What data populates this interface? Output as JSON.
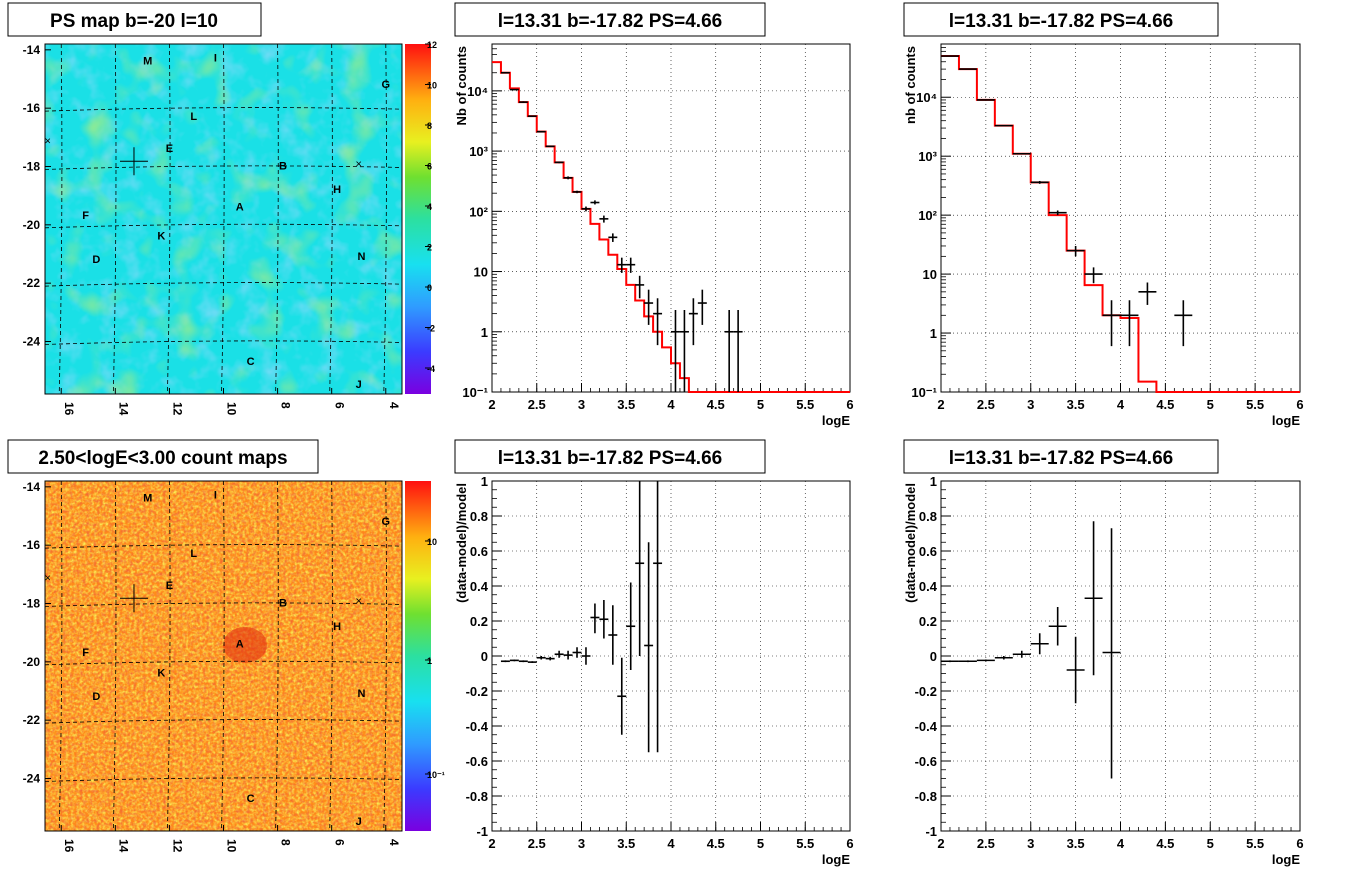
{
  "colors": {
    "model": "#ff0000",
    "data": "#000000",
    "grid": "#000000"
  },
  "map_common": {
    "ylabels": [
      "-14",
      "-16",
      "-18",
      "-20",
      "-22",
      "-24"
    ],
    "xlabels": [
      "16",
      "14",
      "12",
      "10",
      "8",
      "6",
      "4"
    ],
    "sources": [
      {
        "label": "M",
        "l": 12.8,
        "b": -14.5
      },
      {
        "label": "I",
        "l": 10.3,
        "b": -14.4
      },
      {
        "label": "G",
        "l": 4.0,
        "b": -15.3
      },
      {
        "label": "L",
        "l": 11.1,
        "b": -16.4
      },
      {
        "label": "E",
        "l": 12.0,
        "b": -17.5
      },
      {
        "label": "B",
        "l": 7.8,
        "b": -18.1
      },
      {
        "label": "H",
        "l": 5.8,
        "b": -18.9
      },
      {
        "label": "A",
        "l": 9.4,
        "b": -19.5
      },
      {
        "label": "F",
        "l": 15.1,
        "b": -19.8
      },
      {
        "label": "K",
        "l": 12.3,
        "b": -20.5
      },
      {
        "label": "D",
        "l": 14.7,
        "b": -21.3
      },
      {
        "label": "N",
        "l": 4.9,
        "b": -21.2
      },
      {
        "label": "C",
        "l": 9.0,
        "b": -24.8
      },
      {
        "label": "J",
        "l": 5.0,
        "b": -25.6
      }
    ],
    "cross": {
      "l": 13.31,
      "b": -17.82
    }
  },
  "panels": {
    "ps_map": {
      "title": "PS map b=-20 l=10",
      "colorbar_labels": [
        "12",
        "10",
        "8",
        "6",
        "4",
        "2",
        "0",
        "-2",
        "-4"
      ]
    },
    "count_map": {
      "title": "2.50<logE<3.00 count maps",
      "colorbar_labels": [
        "10",
        "1",
        "10⁻¹"
      ]
    },
    "spec1": {
      "title": "l=13.31 b=-17.82 PS=4.66"
    },
    "spec2": {
      "title": "l=13.31 b=-17.82 PS=4.66"
    },
    "res1": {
      "title": "l=13.31 b=-17.82 PS=4.66"
    },
    "res2": {
      "title": "l=13.31 b=-17.82 PS=4.66"
    }
  },
  "chart_data": [
    {
      "id": "spec1",
      "type": "line",
      "title": "l=13.31 b=-17.82 PS=4.66",
      "xlabel": "logE",
      "ylabel": "Nb of counts",
      "xlim": [
        2,
        6
      ],
      "ylim": [
        0.1,
        60000
      ],
      "yscale": "log",
      "grid": true,
      "xticks": [
        "2",
        "2.5",
        "3",
        "3.5",
        "4",
        "4.5",
        "5",
        "5.5",
        "6"
      ],
      "yticks": [
        "10⁻¹",
        "1",
        "10",
        "10²",
        "10³",
        "10⁴"
      ],
      "series": [
        {
          "kind": "histogram",
          "bin_edges": [
            2.0,
            2.1,
            2.2,
            2.3,
            2.4,
            2.5,
            2.6,
            2.7,
            2.8,
            2.9,
            3.0,
            3.1,
            3.2,
            3.3,
            3.4,
            3.5,
            3.6,
            3.7,
            3.8,
            3.9,
            4.0,
            4.1,
            4.2,
            4.3,
            6.0
          ],
          "values": [
            30000,
            20000,
            11000,
            6500,
            3800,
            2100,
            1200,
            650,
            360,
            210,
            110,
            62,
            34,
            19,
            11,
            6.0,
            3.3,
            1.8,
            1.0,
            0.55,
            0.3,
            0.17,
            0.1,
            0.1
          ]
        },
        {
          "kind": "errorbar",
          "x": [
            2.15,
            2.25,
            2.35,
            2.45,
            2.55,
            2.65,
            2.75,
            2.85,
            2.95,
            3.05,
            3.15,
            3.25,
            3.35,
            3.45,
            3.55,
            3.65,
            3.75,
            3.85,
            4.05,
            4.15,
            4.25,
            4.35,
            4.65,
            4.75
          ],
          "y": [
            20000,
            10500,
            6500,
            3800,
            2100,
            1200,
            650,
            360,
            210,
            110,
            140,
            75,
            37,
            13,
            13,
            6,
            3,
            2,
            1,
            1,
            2,
            3,
            1,
            1
          ],
          "ylo": [
            19700,
            10300,
            6300,
            3700,
            2050,
            1170,
            630,
            340,
            200,
            100,
            130,
            65,
            31,
            9.5,
            9.5,
            3.6,
            1.3,
            0.6,
            0.1,
            0.1,
            0.6,
            1.3,
            0.1,
            0.1
          ],
          "yhi": [
            20300,
            10700,
            6700,
            3900,
            2150,
            1230,
            670,
            380,
            220,
            120,
            152,
            85,
            43,
            17,
            17,
            8.5,
            5,
            3.6,
            2.3,
            2.3,
            3.6,
            5,
            2.3,
            2.3
          ]
        }
      ]
    },
    {
      "id": "spec2",
      "type": "line",
      "title": "l=13.31 b=-17.82 PS=4.66",
      "xlabel": "logE",
      "ylabel": "nb of counts",
      "xlim": [
        2,
        6
      ],
      "ylim": [
        0.1,
        80000
      ],
      "yscale": "log",
      "grid": true,
      "xticks": [
        "2",
        "2.5",
        "3",
        "3.5",
        "4",
        "4.5",
        "5",
        "5.5",
        "6"
      ],
      "yticks": [
        "10⁻¹",
        "1",
        "10",
        "10²",
        "10³",
        "10⁴"
      ],
      "series": [
        {
          "kind": "histogram",
          "bin_edges": [
            2.0,
            2.2,
            2.4,
            2.6,
            2.8,
            3.0,
            3.2,
            3.4,
            3.6,
            3.8,
            4.0,
            4.2,
            4.4,
            6.0
          ],
          "values": [
            50000,
            30000,
            9000,
            3300,
            1100,
            360,
            100,
            25,
            6.5,
            2.0,
            1.8,
            0.15,
            0.1
          ]
        },
        {
          "kind": "errorbar",
          "x": [
            2.1,
            2.3,
            2.5,
            2.7,
            2.9,
            3.1,
            3.3,
            3.5,
            3.7,
            3.9,
            4.1,
            4.3,
            4.7
          ],
          "y": [
            50000,
            30000,
            9000,
            3300,
            1100,
            360,
            110,
            25,
            10,
            2,
            2,
            5,
            2
          ],
          "ylo": [
            49700,
            29800,
            8900,
            3250,
            1070,
            340,
            100,
            20,
            7,
            0.6,
            0.6,
            3,
            0.6
          ],
          "yhi": [
            50300,
            30200,
            9100,
            3350,
            1130,
            380,
            120,
            30,
            13,
            3.6,
            3.6,
            7.2,
            3.6
          ]
        }
      ]
    },
    {
      "id": "res1",
      "type": "scatter",
      "title": "l=13.31 b=-17.82 PS=4.66",
      "xlabel": "logE",
      "ylabel": "(data-model)/model",
      "xlim": [
        2,
        6
      ],
      "ylim": [
        -1,
        1
      ],
      "grid": true,
      "xticks": [
        "2",
        "2.5",
        "3",
        "3.5",
        "4",
        "4.5",
        "5",
        "5.5",
        "6"
      ],
      "yticks": [
        "-1",
        "-0.8",
        "-0.6",
        "-0.4",
        "-0.2",
        "0",
        "0.2",
        "0.4",
        "0.6",
        "0.8",
        "1"
      ],
      "series": [
        {
          "kind": "errorbar",
          "x": [
            2.15,
            2.25,
            2.35,
            2.45,
            2.55,
            2.65,
            2.75,
            2.85,
            2.95,
            3.05,
            3.15,
            3.25,
            3.35,
            3.45,
            3.55,
            3.65,
            3.75,
            3.85
          ],
          "y": [
            -0.03,
            -0.025,
            -0.03,
            -0.035,
            -0.01,
            -0.015,
            0.01,
            0.005,
            0.02,
            0.0,
            0.22,
            0.21,
            0.12,
            -0.23,
            0.17,
            0.53,
            0.06,
            0.53
          ],
          "ylo": [
            -0.035,
            -0.03,
            -0.035,
            -0.04,
            -0.02,
            -0.025,
            -0.01,
            -0.02,
            -0.01,
            -0.05,
            0.13,
            0.1,
            -0.05,
            -0.45,
            -0.08,
            0.0,
            -0.55,
            -0.55
          ],
          "yhi": [
            -0.025,
            -0.02,
            -0.025,
            -0.03,
            0.0,
            -0.005,
            0.03,
            0.03,
            0.05,
            0.05,
            0.3,
            0.32,
            0.29,
            -0.01,
            0.42,
            1.0,
            0.65,
            1.0
          ]
        }
      ]
    },
    {
      "id": "res2",
      "type": "scatter",
      "title": "l=13.31 b=-17.82 PS=4.66",
      "xlabel": "logE",
      "ylabel": "(data-model)/model",
      "xlim": [
        2,
        6
      ],
      "ylim": [
        -1,
        1
      ],
      "grid": true,
      "xticks": [
        "2",
        "2.5",
        "3",
        "3.5",
        "4",
        "4.5",
        "5",
        "5.5",
        "6"
      ],
      "yticks": [
        "-1",
        "-0.8",
        "-0.6",
        "-0.4",
        "-0.2",
        "0",
        "0.2",
        "0.4",
        "0.6",
        "0.8",
        "1"
      ],
      "series": [
        {
          "kind": "errorbar",
          "x": [
            2.1,
            2.3,
            2.5,
            2.7,
            2.9,
            3.1,
            3.3,
            3.5,
            3.7,
            3.9
          ],
          "y": [
            -0.03,
            -0.03,
            -0.025,
            -0.01,
            0.01,
            0.07,
            0.17,
            -0.08,
            0.33,
            0.02
          ],
          "ylo": [
            -0.035,
            -0.035,
            -0.03,
            -0.02,
            -0.01,
            0.01,
            0.06,
            -0.27,
            -0.11,
            -0.7
          ],
          "yhi": [
            -0.025,
            -0.025,
            -0.02,
            0.0,
            0.03,
            0.13,
            0.28,
            0.11,
            0.77,
            0.73
          ]
        }
      ]
    }
  ]
}
